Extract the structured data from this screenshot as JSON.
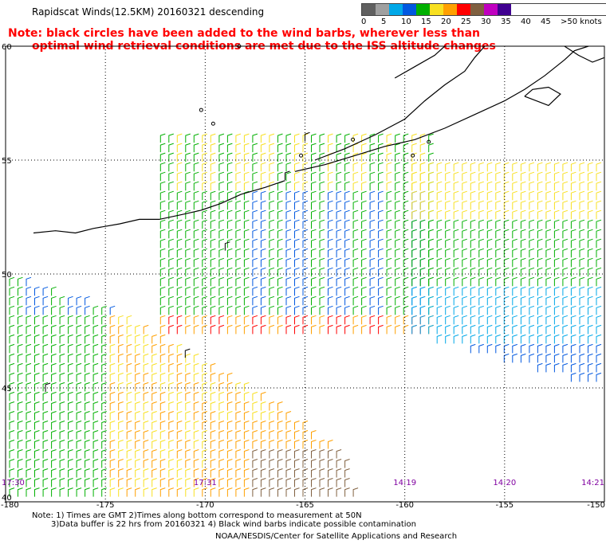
{
  "title": "Rapidscat Winds(12.5KM) 20160321 descending",
  "note": {
    "line1": "Note: black circles have been added to the wind barbs, wherever less than",
    "line2": "optimal wind retrieval conditions are met due to the ISS altitude changes"
  },
  "legend": {
    "labels": [
      "0",
      "5",
      "10",
      "15",
      "20",
      "25",
      "30",
      "35",
      "40",
      "45",
      ">50 knots"
    ],
    "colors": [
      "#606060",
      "#a0a0a0",
      "#00a8e8",
      "#0058e0",
      "#00b000",
      "#f8e020",
      "#ffa000",
      "#ff0000",
      "#806040",
      "#c000c0",
      "#400090"
    ]
  },
  "map": {
    "lat_labels": [
      "60",
      "55",
      "50",
      "45",
      "40"
    ],
    "lon_labels": [
      "-180",
      "-175",
      "-170",
      "-165",
      "-160",
      "-155",
      "-150"
    ],
    "time_labels": [
      "17:30",
      "17:31",
      "14:19",
      "14:20",
      "14:21"
    ],
    "colors": {
      "coast": "#000000",
      "grid": "#000000",
      "time_label": "#8000a0",
      "contaminated": "#000000"
    }
  },
  "footer": {
    "line1": "Note: 1) Times are GMT 2)Times along bottom correspond to measurement at 50N",
    "line2": "3)Data buffer is 22 hrs from 20160321 4) Black wind barbs indicate possible contamination",
    "credit": "NOAA/NESDIS/Center for Satellite Applications and Research"
  }
}
